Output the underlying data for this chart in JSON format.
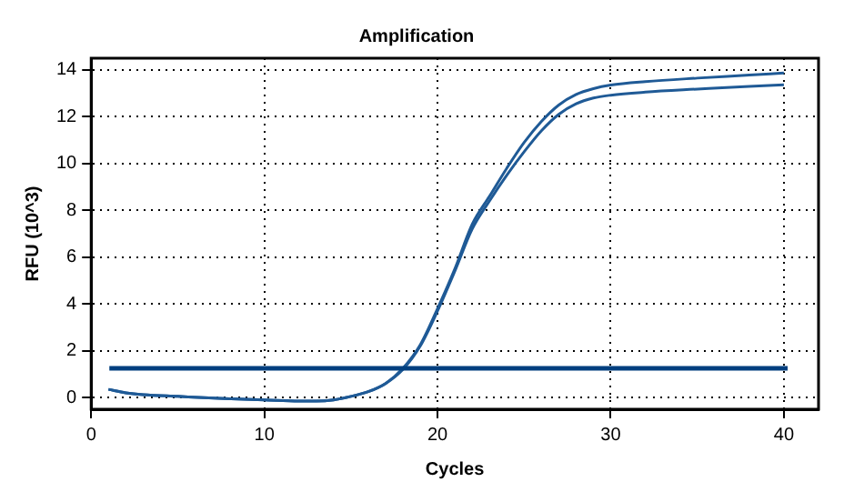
{
  "chart_data": {
    "type": "line",
    "title": "Amplification",
    "xlabel": "Cycles",
    "ylabel": "RFU (10^3)",
    "x": [
      1,
      2,
      3,
      5,
      8,
      10,
      12,
      13,
      14,
      15,
      16,
      17,
      18,
      19,
      20,
      21,
      22,
      23,
      24,
      25,
      26,
      27,
      28,
      29,
      30,
      32,
      35,
      38,
      40
    ],
    "series": [
      {
        "color": "#1f5a96",
        "values": [
          0.35,
          0.2,
          0.12,
          0.05,
          -0.05,
          -0.1,
          -0.15,
          -0.15,
          -0.1,
          0.05,
          0.25,
          0.6,
          1.25,
          2.25,
          3.8,
          5.5,
          7.4,
          8.6,
          9.8,
          10.9,
          11.8,
          12.5,
          12.95,
          13.2,
          13.35,
          13.5,
          13.65,
          13.78,
          13.87
        ]
      },
      {
        "color": "#1f5a96",
        "values": [
          0.35,
          0.2,
          0.12,
          0.05,
          -0.05,
          -0.1,
          -0.15,
          -0.15,
          -0.1,
          0.05,
          0.25,
          0.6,
          1.2,
          2.2,
          3.7,
          5.4,
          7.2,
          8.4,
          9.5,
          10.5,
          11.4,
          12.1,
          12.55,
          12.8,
          12.92,
          13.05,
          13.18,
          13.3,
          13.36
        ]
      }
    ],
    "ref_lines": [
      {
        "axis": "y",
        "value": 1.25,
        "color": "#003f7f"
      }
    ],
    "xlim": [
      0,
      42
    ],
    "xticks": [
      0,
      10,
      20,
      30,
      40
    ],
    "ylim": [
      -0.5,
      14.5
    ],
    "yticks": [
      0,
      2,
      4,
      6,
      8,
      10,
      12,
      14
    ],
    "grid": true,
    "legend": false,
    "marker": "none",
    "line_style": "solid"
  }
}
